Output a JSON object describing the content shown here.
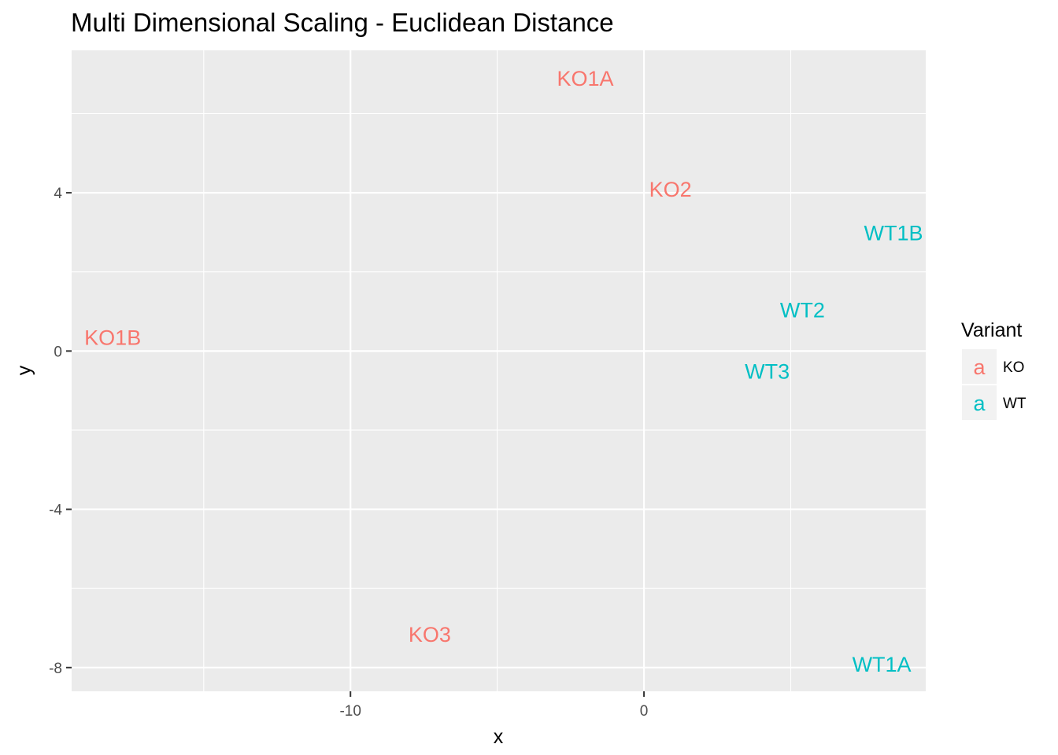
{
  "chart_data": {
    "type": "scatter",
    "title": "Multi Dimensional Scaling - Euclidean Distance",
    "xlabel": "x",
    "ylabel": "y",
    "xlim": [
      -19.5,
      9.6
    ],
    "ylim": [
      -8.6,
      7.6
    ],
    "x_ticks": [
      -15,
      -10,
      -5,
      0,
      5
    ],
    "x_tick_labels": [
      "",
      "-10",
      "",
      "0",
      ""
    ],
    "y_ticks": [
      -8,
      -6,
      -4,
      -2,
      0,
      2,
      4,
      6
    ],
    "y_tick_labels": [
      "-8",
      "",
      "-4",
      "",
      "0",
      "",
      "4",
      ""
    ],
    "grid": true,
    "legend": {
      "title": "Variant",
      "position": "right",
      "key_glyph": "a",
      "entries": [
        {
          "label": "KO",
          "color": "#F8766D"
        },
        {
          "label": "WT",
          "color": "#00BFC4"
        }
      ]
    },
    "colors": {
      "KO": "#F8766D",
      "WT": "#00BFC4"
    },
    "points": [
      {
        "label": "KO1A",
        "group": "KO",
        "x": -2.0,
        "y": 6.9
      },
      {
        "label": "KO2",
        "group": "KO",
        "x": 0.9,
        "y": 4.1
      },
      {
        "label": "WT1B",
        "group": "WT",
        "x": 8.5,
        "y": 3.0
      },
      {
        "label": "WT2",
        "group": "WT",
        "x": 5.4,
        "y": 1.05
      },
      {
        "label": "KO1B",
        "group": "KO",
        "x": -18.1,
        "y": 0.35
      },
      {
        "label": "WT3",
        "group": "WT",
        "x": 4.2,
        "y": -0.5
      },
      {
        "label": "KO3",
        "group": "KO",
        "x": -7.3,
        "y": -7.15
      },
      {
        "label": "WT1A",
        "group": "WT",
        "x": 8.1,
        "y": -7.9
      }
    ]
  }
}
